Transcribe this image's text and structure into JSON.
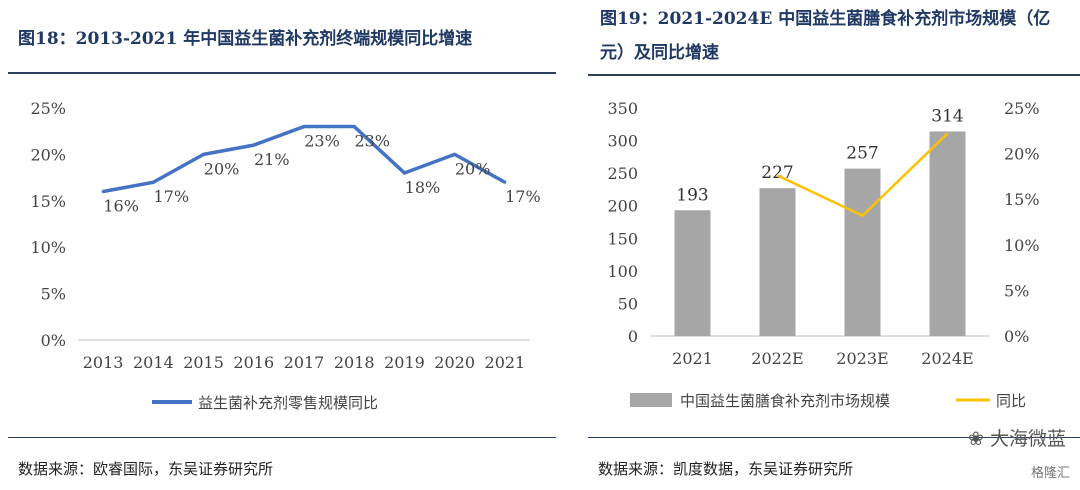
{
  "left_panel": {
    "title": "图18：2013-2021 年中国益生菌补充剂终端规模同比增速",
    "source": "数据来源：欧睿国际，东吴证券研究所"
  },
  "right_panel": {
    "title": "图19：2021-2024E  中国益生菌膳食补充剂市场规模（亿元）及同比增速",
    "source": "数据来源：凯度数据，东吴证券研究所"
  },
  "watermark": {
    "line1": "大海微蓝",
    "line2": "格隆汇"
  },
  "colors": {
    "line_blue": "#4472c4",
    "bar_gray": "#a6a6a6",
    "line_yellow": "#ffc000",
    "title_navy": "#1f3864"
  },
  "chart_data": [
    {
      "type": "line",
      "x": [
        "2013",
        "2014",
        "2015",
        "2016",
        "2017",
        "2018",
        "2019",
        "2020",
        "2021"
      ],
      "series": [
        {
          "name": "益生菌补充剂零售规模同比",
          "values": [
            16,
            17,
            20,
            21,
            23,
            23,
            18,
            20,
            17
          ]
        }
      ],
      "data_labels": [
        "16%",
        "17%",
        "20%",
        "21%",
        "23%",
        "23%",
        "18%",
        "20%",
        "17%"
      ],
      "yticks": [
        "0%",
        "5%",
        "10%",
        "15%",
        "20%",
        "25%"
      ],
      "ylim": [
        0,
        25
      ],
      "legend": "bottom",
      "grid": false
    },
    {
      "type": "bar",
      "categories": [
        "2021",
        "2022E",
        "2023E",
        "2024E"
      ],
      "series": [
        {
          "name": "中国益生菌膳食补充剂市场规模",
          "type": "bar",
          "axis": "left",
          "values": [
            193,
            227,
            257,
            314
          ]
        },
        {
          "name": "同比",
          "type": "line",
          "axis": "right",
          "values": [
            null,
            17.6,
            13.2,
            22.2
          ]
        }
      ],
      "bar_labels": [
        "193",
        "227",
        "257",
        "314"
      ],
      "yticks_left": [
        "0",
        "50",
        "100",
        "150",
        "200",
        "250",
        "300",
        "350"
      ],
      "ylim_left": [
        0,
        350
      ],
      "yticks_right": [
        "0%",
        "5%",
        "10%",
        "15%",
        "20%",
        "25%"
      ],
      "ylim_right": [
        0,
        25
      ],
      "legend": "bottom",
      "grid": false
    }
  ]
}
